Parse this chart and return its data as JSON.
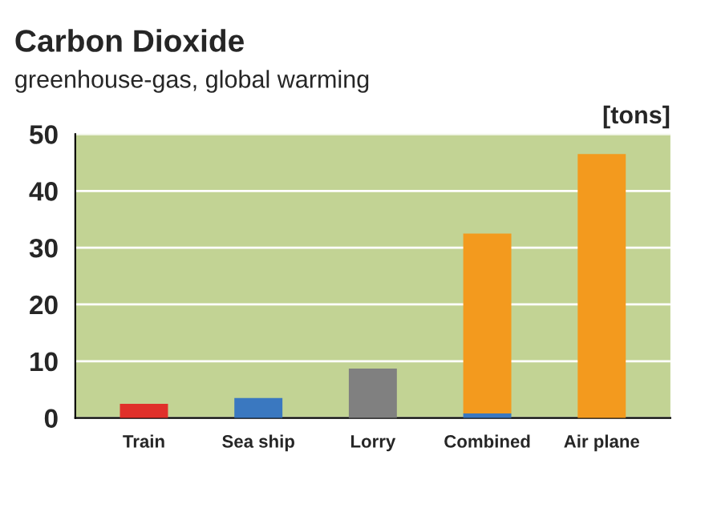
{
  "chart_data": {
    "type": "bar",
    "title": "Carbon Dioxide",
    "subtitle": "greenhouse-gas, global warming",
    "ylabel": "[tons]",
    "categories": [
      "Train",
      "Sea ship",
      "Lorry",
      "Combined",
      "Air plane"
    ],
    "stacked": true,
    "series": [
      {
        "colors": [
          "#e0302a",
          "#3a78c0",
          "#808080",
          "#3a78c0",
          "#f39a1e"
        ],
        "values": [
          2.5,
          3.5,
          8.7,
          0.8,
          null
        ]
      },
      {
        "color": "#f39a1e",
        "values": [
          null,
          null,
          null,
          31.7,
          46.5
        ]
      }
    ],
    "ylim": [
      0,
      50
    ],
    "yticks": [
      0,
      10,
      20,
      30,
      40,
      50
    ],
    "grid": "y"
  }
}
